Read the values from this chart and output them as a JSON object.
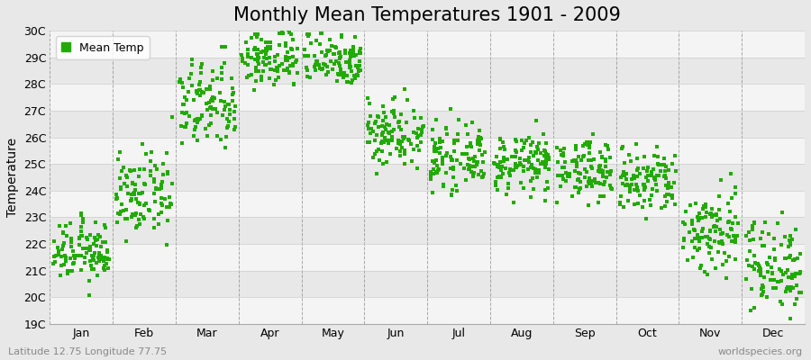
{
  "title": "Monthly Mean Temperatures 1901 - 2009",
  "ylabel": "Temperature",
  "ytick_labels": [
    "19C",
    "20C",
    "21C",
    "22C",
    "23C",
    "24C",
    "25C",
    "26C",
    "27C",
    "28C",
    "29C",
    "30C"
  ],
  "ytick_values": [
    19,
    20,
    21,
    22,
    23,
    24,
    25,
    26,
    27,
    28,
    29,
    30
  ],
  "ylim": [
    19,
    30
  ],
  "months": [
    "Jan",
    "Feb",
    "Mar",
    "Apr",
    "May",
    "Jun",
    "Jul",
    "Aug",
    "Sep",
    "Oct",
    "Nov",
    "Dec"
  ],
  "mean_temps": [
    21.7,
    23.8,
    27.2,
    29.0,
    29.0,
    26.2,
    25.2,
    25.0,
    24.8,
    24.3,
    22.5,
    21.2
  ],
  "std_temps": [
    0.55,
    0.75,
    0.85,
    0.6,
    0.55,
    0.65,
    0.55,
    0.55,
    0.55,
    0.65,
    0.85,
    0.9
  ],
  "n_years": 109,
  "dot_color": "#22aa00",
  "dot_size": 5,
  "background_color": "#e8e8e8",
  "plot_bg_color": "#efefef",
  "alt_band_color": "#e0e0e0",
  "grid_color": "#cccccc",
  "dashed_line_color": "#888888",
  "title_fontsize": 15,
  "label_fontsize": 10,
  "tick_fontsize": 9,
  "footer_left": "Latitude 12.75 Longitude 77.75",
  "footer_right": "worldspecies.org",
  "legend_label": "Mean Temp"
}
